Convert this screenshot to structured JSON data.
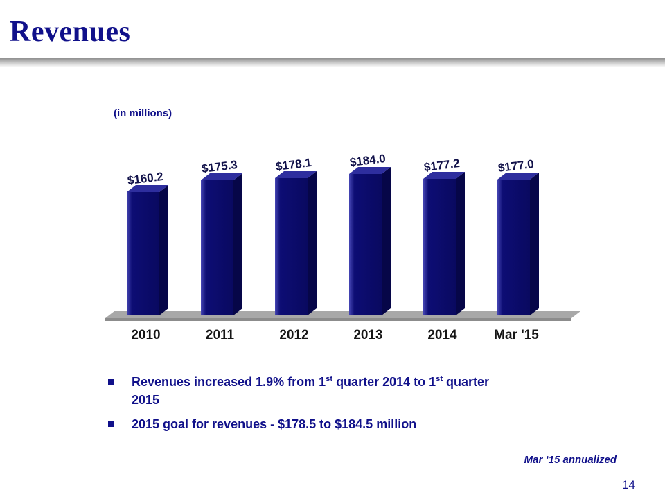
{
  "slide": {
    "title": "Revenues",
    "units_label": "(in millions)",
    "footnote": "Mar ‘15 annualized",
    "page_number": "14"
  },
  "colors": {
    "navy_text": "#10108a",
    "bar_highlight": "#4646b4",
    "bar_front": "#0d0d74",
    "bar_front_dark": "#090960",
    "bar_top": "#2e2e9e",
    "bar_side": "#060648",
    "floor": "#a8a8a8",
    "floor_edge": "#8c8c8c",
    "data_label": "#12124a",
    "axis_label": "#161616"
  },
  "icons": {
    "bullet_marker": "square-bullet-icon"
  },
  "chart_data": {
    "type": "bar",
    "style": "3d-column",
    "categories": [
      "2010",
      "2011",
      "2012",
      "2013",
      "2014",
      "Mar '15"
    ],
    "values": [
      160.2,
      175.3,
      178.1,
      184.0,
      177.2,
      177.0
    ],
    "data_labels": [
      "$160.2",
      "$175.3",
      "$178.1",
      "$184.0",
      "$177.2",
      "$177.0"
    ],
    "title": "",
    "xlabel": "",
    "ylabel": "",
    "ylim": [
      0,
      200
    ],
    "grid": false,
    "legend": false
  },
  "bullets": [
    {
      "segments": [
        {
          "text": "Revenues increased 1.9% from 1"
        },
        {
          "text": "st",
          "sup": true
        },
        {
          "text": " quarter 2014 to 1"
        },
        {
          "text": "st",
          "sup": true
        },
        {
          "text": " quarter"
        },
        {
          "br": true
        },
        {
          "text": "2015"
        }
      ]
    },
    {
      "segments": [
        {
          "text": "2015 goal for revenues - $178.5 to $184.5 million"
        }
      ]
    }
  ]
}
